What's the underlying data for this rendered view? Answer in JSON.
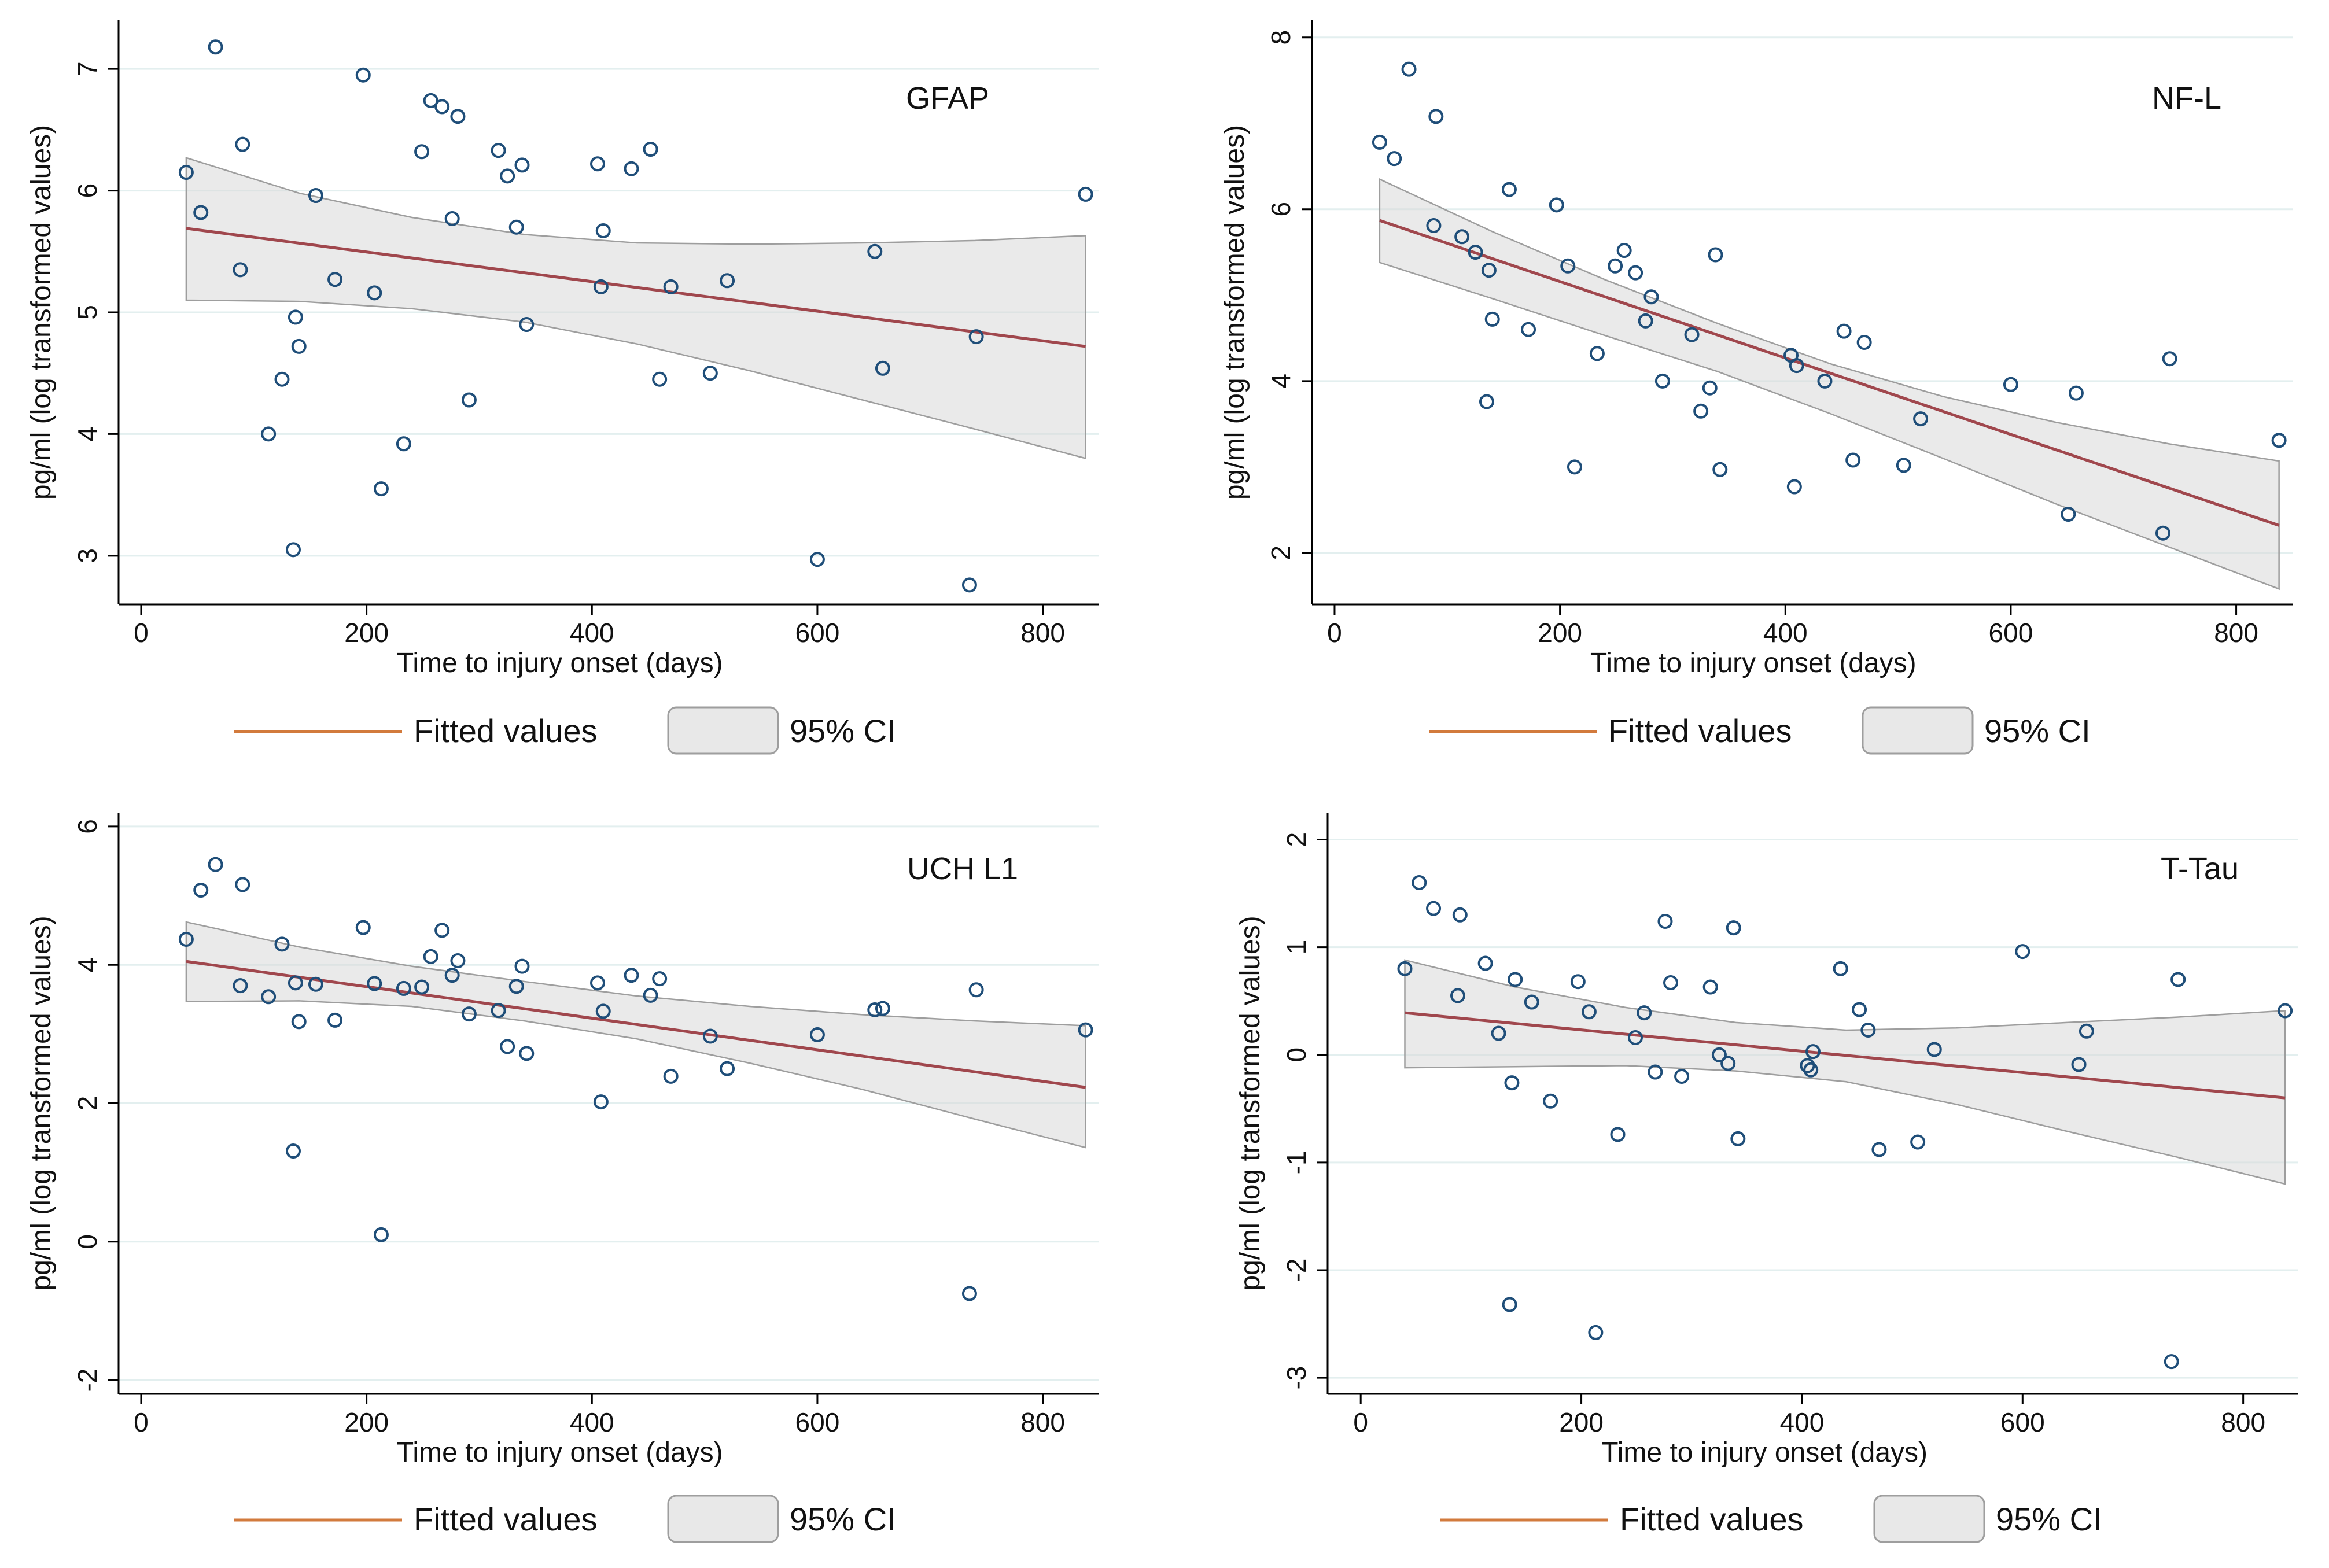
{
  "chart_data": [
    {
      "type": "scatter",
      "title": "GFAP",
      "xlabel": "Time to injury onset (days)",
      "ylabel": "pg/ml  (log transformed values)",
      "xlim": [
        -20,
        850
      ],
      "ylim": [
        2.6,
        7.4
      ],
      "xticks": [
        0,
        200,
        400,
        600,
        800
      ],
      "yticks": [
        3,
        4,
        5,
        6,
        7
      ],
      "colors": {
        "marker": "#1f4e79",
        "fit": "#a0474d",
        "ci_fill": "#d9d9d9",
        "grid": "#e3efef"
      },
      "legend": {
        "fit_label": "Fitted values",
        "ci_label": "95% CI"
      },
      "points": [
        [
          40,
          6.15
        ],
        [
          53,
          5.82
        ],
        [
          66,
          7.18
        ],
        [
          88,
          5.35
        ],
        [
          90,
          6.38
        ],
        [
          113,
          4.0
        ],
        [
          125,
          4.45
        ],
        [
          135,
          3.05
        ],
        [
          137,
          4.96
        ],
        [
          140,
          4.72
        ],
        [
          155,
          5.96
        ],
        [
          172,
          5.27
        ],
        [
          197,
          6.95
        ],
        [
          207,
          5.16
        ],
        [
          213,
          3.55
        ],
        [
          233,
          3.92
        ],
        [
          249,
          6.32
        ],
        [
          257,
          6.74
        ],
        [
          267,
          6.69
        ],
        [
          276,
          5.77
        ],
        [
          281,
          6.61
        ],
        [
          291,
          4.28
        ],
        [
          317,
          6.33
        ],
        [
          325,
          6.12
        ],
        [
          333,
          5.7
        ],
        [
          338,
          6.21
        ],
        [
          342,
          4.9
        ],
        [
          405,
          6.22
        ],
        [
          408,
          5.21
        ],
        [
          410,
          5.67
        ],
        [
          435,
          6.18
        ],
        [
          452,
          6.34
        ],
        [
          460,
          4.45
        ],
        [
          470,
          5.21
        ],
        [
          505,
          4.5
        ],
        [
          520,
          5.26
        ],
        [
          600,
          2.97
        ],
        [
          651,
          5.5
        ],
        [
          658,
          4.54
        ],
        [
          735,
          2.76
        ],
        [
          741,
          4.8
        ],
        [
          838,
          5.97
        ]
      ],
      "fit": {
        "x": [
          40,
          838
        ],
        "y": [
          5.69,
          4.72
        ]
      },
      "ci": {
        "x": [
          40,
          140,
          240,
          340,
          440,
          540,
          640,
          740,
          838
        ],
        "upper": [
          6.27,
          5.98,
          5.78,
          5.64,
          5.57,
          5.56,
          5.57,
          5.59,
          5.63
        ],
        "lower": [
          5.1,
          5.09,
          5.03,
          4.92,
          4.74,
          4.52,
          4.28,
          4.04,
          3.8
        ]
      }
    },
    {
      "type": "scatter",
      "title": "NF-L",
      "xlabel": "Time to injury onset (days)",
      "ylabel": "pg/ml  (log transformed values)",
      "xlim": [
        -20,
        850
      ],
      "ylim": [
        1.4,
        8.2
      ],
      "xticks": [
        0,
        200,
        400,
        600,
        800
      ],
      "yticks": [
        2,
        4,
        6,
        8
      ],
      "colors": {
        "marker": "#1f4e79",
        "fit": "#a0474d",
        "ci_fill": "#d9d9d9",
        "grid": "#e3efef"
      },
      "legend": {
        "fit_label": "Fitted values",
        "ci_label": "95% CI"
      },
      "points": [
        [
          40,
          6.78
        ],
        [
          53,
          6.59
        ],
        [
          66,
          7.63
        ],
        [
          88,
          5.81
        ],
        [
          90,
          7.08
        ],
        [
          113,
          5.68
        ],
        [
          125,
          5.5
        ],
        [
          135,
          3.76
        ],
        [
          137,
          5.29
        ],
        [
          140,
          4.72
        ],
        [
          155,
          6.23
        ],
        [
          172,
          4.6
        ],
        [
          197,
          6.05
        ],
        [
          207,
          5.34
        ],
        [
          213,
          3.0
        ],
        [
          233,
          4.32
        ],
        [
          249,
          5.34
        ],
        [
          257,
          5.52
        ],
        [
          267,
          5.26
        ],
        [
          276,
          4.7
        ],
        [
          281,
          4.98
        ],
        [
          291,
          4.0
        ],
        [
          317,
          4.54
        ],
        [
          325,
          3.65
        ],
        [
          333,
          3.92
        ],
        [
          338,
          5.47
        ],
        [
          342,
          2.97
        ],
        [
          405,
          4.3
        ],
        [
          408,
          2.77
        ],
        [
          410,
          4.18
        ],
        [
          435,
          4.0
        ],
        [
          452,
          4.58
        ],
        [
          460,
          3.08
        ],
        [
          470,
          4.45
        ],
        [
          505,
          3.02
        ],
        [
          520,
          3.56
        ],
        [
          600,
          3.96
        ],
        [
          651,
          2.45
        ],
        [
          658,
          3.86
        ],
        [
          735,
          2.23
        ],
        [
          741,
          4.26
        ],
        [
          838,
          3.31
        ]
      ],
      "fit": {
        "x": [
          40,
          838
        ],
        "y": [
          5.87,
          2.32
        ]
      },
      "ci": {
        "x": [
          40,
          140,
          240,
          340,
          440,
          540,
          640,
          740,
          838
        ],
        "upper": [
          6.35,
          5.74,
          5.18,
          4.67,
          4.2,
          3.82,
          3.52,
          3.27,
          3.07
        ],
        "lower": [
          5.38,
          4.96,
          4.53,
          4.11,
          3.62,
          3.1,
          2.57,
          2.07,
          1.58
        ]
      }
    },
    {
      "type": "scatter",
      "title": "UCH L1",
      "xlabel": "Time to injury onset (days)",
      "ylabel": "pg/ml  (log transformed values)",
      "xlim": [
        -20,
        850
      ],
      "ylim": [
        -2.2,
        6.2
      ],
      "xticks": [
        0,
        200,
        400,
        600,
        800
      ],
      "yticks": [
        -2,
        0,
        2,
        4,
        6
      ],
      "colors": {
        "marker": "#1f4e79",
        "fit": "#a0474d",
        "ci_fill": "#d9d9d9",
        "grid": "#e3efef"
      },
      "legend": {
        "fit_label": "Fitted values",
        "ci_label": "95% CI"
      },
      "points": [
        [
          40,
          4.37
        ],
        [
          53,
          5.08
        ],
        [
          66,
          5.45
        ],
        [
          88,
          3.7
        ],
        [
          90,
          5.16
        ],
        [
          113,
          3.54
        ],
        [
          125,
          4.3
        ],
        [
          135,
          1.31
        ],
        [
          137,
          3.74
        ],
        [
          140,
          3.18
        ],
        [
          155,
          3.72
        ],
        [
          172,
          3.2
        ],
        [
          197,
          4.54
        ],
        [
          207,
          3.73
        ],
        [
          213,
          0.1
        ],
        [
          233,
          3.66
        ],
        [
          249,
          3.68
        ],
        [
          257,
          4.12
        ],
        [
          267,
          4.5
        ],
        [
          276,
          3.85
        ],
        [
          281,
          4.06
        ],
        [
          291,
          3.29
        ],
        [
          317,
          3.34
        ],
        [
          325,
          2.82
        ],
        [
          333,
          3.69
        ],
        [
          338,
          3.98
        ],
        [
          342,
          2.72
        ],
        [
          405,
          3.74
        ],
        [
          408,
          2.02
        ],
        [
          410,
          3.33
        ],
        [
          435,
          3.85
        ],
        [
          452,
          3.56
        ],
        [
          460,
          3.8
        ],
        [
          470,
          2.39
        ],
        [
          505,
          2.97
        ],
        [
          520,
          2.5
        ],
        [
          600,
          2.99
        ],
        [
          651,
          3.35
        ],
        [
          658,
          3.37
        ],
        [
          735,
          -0.75
        ],
        [
          741,
          3.64
        ],
        [
          838,
          3.06
        ]
      ],
      "fit": {
        "x": [
          40,
          838
        ],
        "y": [
          4.05,
          2.23
        ]
      },
      "ci": {
        "x": [
          40,
          140,
          240,
          340,
          440,
          540,
          640,
          740,
          838
        ],
        "upper": [
          4.62,
          4.26,
          3.98,
          3.76,
          3.55,
          3.4,
          3.28,
          3.19,
          3.12
        ],
        "lower": [
          3.47,
          3.48,
          3.4,
          3.19,
          2.93,
          2.58,
          2.2,
          1.77,
          1.36
        ]
      }
    },
    {
      "type": "scatter",
      "title": "T-Tau",
      "xlabel": "Time to injury onset (days)",
      "ylabel": "pg/ml  (log transformed values)",
      "xlim": [
        -30,
        850
      ],
      "ylim": [
        -3.15,
        2.25
      ],
      "xticks": [
        0,
        200,
        400,
        600,
        800
      ],
      "yticks": [
        -3,
        -2,
        -1,
        0,
        1,
        2
      ],
      "colors": {
        "marker": "#1f4e79",
        "fit": "#a0474d",
        "ci_fill": "#d9d9d9",
        "grid": "#e3efef"
      },
      "legend": {
        "fit_label": "Fitted values",
        "ci_label": "95% CI"
      },
      "points": [
        [
          40,
          0.8
        ],
        [
          53,
          1.6
        ],
        [
          66,
          1.36
        ],
        [
          88,
          0.55
        ],
        [
          90,
          1.3
        ],
        [
          113,
          0.85
        ],
        [
          125,
          0.2
        ],
        [
          135,
          -2.32
        ],
        [
          137,
          -0.26
        ],
        [
          140,
          0.7
        ],
        [
          155,
          0.49
        ],
        [
          172,
          -0.43
        ],
        [
          197,
          0.68
        ],
        [
          207,
          0.4
        ],
        [
          213,
          -2.58
        ],
        [
          233,
          -0.74
        ],
        [
          249,
          0.16
        ],
        [
          257,
          0.39
        ],
        [
          267,
          -0.16
        ],
        [
          276,
          1.24
        ],
        [
          281,
          0.67
        ],
        [
          291,
          -0.2
        ],
        [
          317,
          0.63
        ],
        [
          325,
          0.0
        ],
        [
          333,
          -0.08
        ],
        [
          338,
          1.18
        ],
        [
          342,
          -0.78
        ],
        [
          405,
          -0.1
        ],
        [
          408,
          -0.14
        ],
        [
          410,
          0.03
        ],
        [
          435,
          0.8
        ],
        [
          452,
          0.42
        ],
        [
          460,
          0.23
        ],
        [
          470,
          -0.88
        ],
        [
          505,
          -0.81
        ],
        [
          520,
          0.05
        ],
        [
          600,
          0.96
        ],
        [
          651,
          -0.09
        ],
        [
          658,
          0.22
        ],
        [
          735,
          -2.85
        ],
        [
          741,
          0.7
        ],
        [
          838,
          0.41
        ]
      ],
      "fit": {
        "x": [
          40,
          838
        ],
        "y": [
          0.39,
          -0.4
        ]
      },
      "ci": {
        "x": [
          40,
          140,
          240,
          340,
          440,
          540,
          640,
          740,
          838
        ],
        "upper": [
          0.88,
          0.63,
          0.44,
          0.3,
          0.23,
          0.25,
          0.3,
          0.35,
          0.41
        ],
        "lower": [
          -0.12,
          -0.11,
          -0.1,
          -0.15,
          -0.25,
          -0.46,
          -0.71,
          -0.95,
          -1.2
        ]
      }
    }
  ]
}
